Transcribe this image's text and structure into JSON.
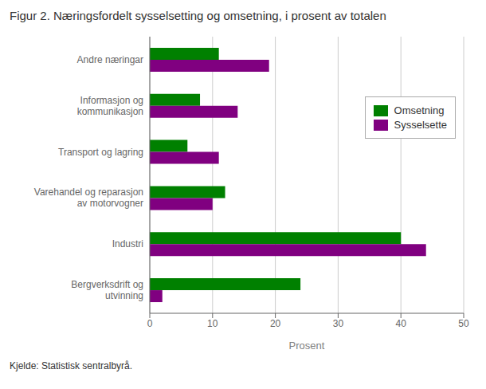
{
  "chart_data": {
    "type": "bar",
    "orientation": "horizontal",
    "title": "Figur 2. Næringsfordelt sysselsetting og omsetning, i prosent av totalen",
    "annotations": [
      "Kjelde: Statistisk sentralbyrå."
    ],
    "categories": [
      "Bergverksdrift og\nutvinning",
      "Industri",
      "Varehandel og reparasjon\nav motorvogner",
      "Transport og lagring",
      "Informasjon og\nkommunikasjon",
      "Andre næringar"
    ],
    "series": [
      {
        "name": "Omsetning",
        "color": "#008000",
        "values": [
          24,
          40,
          12,
          6,
          8,
          11
        ]
      },
      {
        "name": "Sysselsette",
        "color": "#800080",
        "values": [
          2,
          44,
          10,
          11,
          14,
          19
        ]
      }
    ],
    "xlabel": "Prosent",
    "xlim": [
      0,
      50
    ],
    "xticks": [
      0,
      10,
      20,
      30,
      40,
      50
    ],
    "grid": true,
    "legend": "upper right"
  }
}
